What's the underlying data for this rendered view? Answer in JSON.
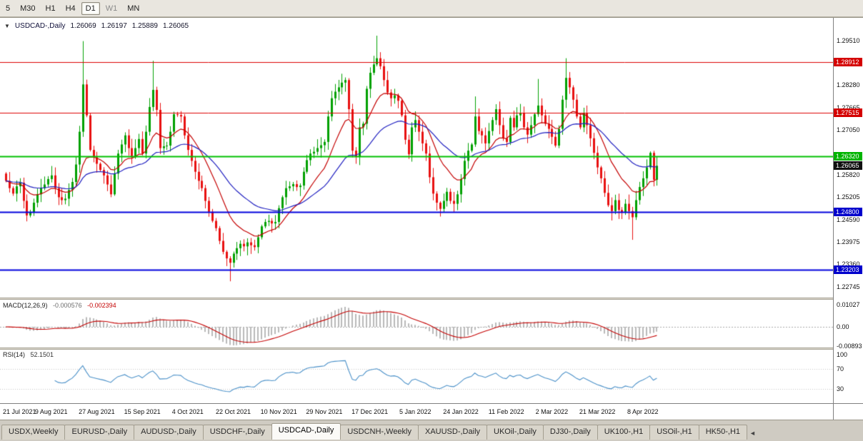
{
  "toolbar": {
    "timeframes": [
      {
        "label": "5",
        "active": false,
        "dim": false
      },
      {
        "label": "M30",
        "active": false,
        "dim": false
      },
      {
        "label": "H1",
        "active": false,
        "dim": false
      },
      {
        "label": "H4",
        "active": false,
        "dim": false
      },
      {
        "label": "D1",
        "active": true,
        "dim": false
      },
      {
        "label": "W1",
        "active": false,
        "dim": true
      },
      {
        "label": "MN",
        "active": false,
        "dim": false
      }
    ]
  },
  "symbol_info": {
    "arrow": "▼",
    "symbol": "USDCAD-,Daily",
    "open": "1.26069",
    "high": "1.26197",
    "low": "1.25889",
    "close": "1.26065"
  },
  "price_scale": {
    "ticks": [
      "1.29510",
      "1.28280",
      "1.27665",
      "1.27050",
      "1.25820",
      "1.25205",
      "1.24590",
      "1.23975",
      "1.23360",
      "1.22745"
    ],
    "badges": [
      {
        "label": "1.28912",
        "color": "#d40000"
      },
      {
        "label": "1.27515",
        "color": "#d40000"
      },
      {
        "label": "1.26320",
        "color": "#00b400"
      },
      {
        "label": "1.26065",
        "color": "#101010"
      },
      {
        "label": "1.24800",
        "color": "#0000cc"
      },
      {
        "label": "1.23203",
        "color": "#0000cc"
      }
    ]
  },
  "macd_panel": {
    "name": "MACD(12,26,9)",
    "value_main": "-0.000576",
    "value_signal": "-0.002394",
    "scale": [
      "0.01027",
      "0.00",
      "-0.00893"
    ]
  },
  "rsi_panel": {
    "name": "RSI(14)",
    "value": "52.1501",
    "scale": [
      "100",
      "70",
      "30"
    ],
    "levels": [
      70,
      30
    ]
  },
  "time_axis": {
    "labels": [
      "21 Jul 2021",
      "9 Aug 2021",
      "27 Aug 2021",
      "15 Sep 2021",
      "4 Oct 2021",
      "22 Oct 2021",
      "10 Nov 2021",
      "29 Nov 2021",
      "17 Dec 2021",
      "5 Jan 2022",
      "24 Jan 2022",
      "11 Feb 2022",
      "2 Mar 2022",
      "21 Mar 2022",
      "8 Apr 2022"
    ],
    "label_step": 13
  },
  "tabbar": {
    "scroll_left": "◄",
    "tabs": [
      {
        "label": "USDX,Weekly",
        "active": false
      },
      {
        "label": "EURUSD-,Daily",
        "active": false
      },
      {
        "label": "AUDUSD-,Daily",
        "active": false
      },
      {
        "label": "USDCHF-,Daily",
        "active": false
      },
      {
        "label": "USDCAD-,Daily",
        "active": true
      },
      {
        "label": "USDCNH-,Weekly",
        "active": false
      },
      {
        "label": "XAUUSD-,Daily",
        "active": false
      },
      {
        "label": "UKOil-,Daily",
        "active": false
      },
      {
        "label": "DJ30-,Daily",
        "active": false
      },
      {
        "label": "UK100-,H1",
        "active": false
      },
      {
        "label": "USOil-,H1",
        "active": false
      },
      {
        "label": "HK50-,H1",
        "active": false
      }
    ]
  },
  "chart_data": {
    "type": "candlestick",
    "symbol": "USDCAD",
    "timeframe": "Daily",
    "title": "USDCAD-,Daily",
    "y_range": [
      1.2244,
      1.3013
    ],
    "current_price": 1.26065,
    "first_open": 1.2585,
    "closes": [
      1.2565,
      1.2545,
      1.253,
      1.255,
      1.256,
      1.251,
      1.247,
      1.2478,
      1.2505,
      1.2528,
      1.2545,
      1.2555,
      1.257,
      1.258,
      1.2545,
      1.252,
      1.2512,
      1.2516,
      1.254,
      1.2562,
      1.261,
      1.27,
      1.283,
      1.2745,
      1.265,
      1.263,
      1.2612,
      1.2595,
      1.258,
      1.2555,
      1.2528,
      1.2585,
      1.264,
      1.2665,
      1.269,
      1.2655,
      1.263,
      1.2655,
      1.268,
      1.264,
      1.27,
      1.2768,
      1.2815,
      1.276,
      1.2655,
      1.266,
      1.2662,
      1.27,
      1.2748,
      1.2746,
      1.2742,
      1.269,
      1.265,
      1.262,
      1.259,
      1.2565,
      1.2545,
      1.251,
      1.248,
      1.2455,
      1.2435,
      1.24,
      1.237,
      1.2352,
      1.234,
      1.2365,
      1.238,
      1.2392,
      1.2385,
      1.2396,
      1.2388,
      1.2383,
      1.241,
      1.244,
      1.2452,
      1.2455,
      1.2448,
      1.2452,
      1.249,
      1.252,
      1.2545,
      1.255,
      1.2556,
      1.2548,
      1.2552,
      1.259,
      1.2622,
      1.264,
      1.2645,
      1.2655,
      1.2663,
      1.2672,
      1.2742,
      1.2792,
      1.281,
      1.2822,
      1.2835,
      1.2842,
      1.2762,
      1.2648,
      1.2632,
      1.2712,
      1.2722,
      1.2818,
      1.2862,
      1.2885,
      1.2902,
      1.288,
      1.2842,
      1.2808,
      1.2792,
      1.28,
      1.2785,
      1.2745,
      1.2678,
      1.2638,
      1.2712,
      1.2732,
      1.27,
      1.2668,
      1.264,
      1.2575,
      1.253,
      1.2505,
      1.2488,
      1.251,
      1.2535,
      1.251,
      1.2502,
      1.2528,
      1.257,
      1.262,
      1.2648,
      1.2665,
      1.2742,
      1.2702,
      1.269,
      1.2668,
      1.2702,
      1.2732,
      1.2762,
      1.2718,
      1.2682,
      1.2672,
      1.2738,
      1.2712,
      1.2745,
      1.2752,
      1.2712,
      1.2692,
      1.2718,
      1.2748,
      1.2772,
      1.2745,
      1.2722,
      1.2708,
      1.2686,
      1.2662,
      1.2708,
      1.2788,
      1.2848,
      1.2822,
      1.2788,
      1.2742,
      1.2712,
      1.2752,
      1.2718,
      1.2682,
      1.2642,
      1.2602,
      1.2572,
      1.2532,
      1.2498,
      1.2482,
      1.2512,
      1.2485,
      1.2478,
      1.2502,
      1.2482,
      1.2465,
      1.2512,
      1.2548,
      1.2572,
      1.2602,
      1.2642,
      1.2568,
      1.26065
    ],
    "spikes": {
      "22": {
        "high": 1.2949
      },
      "42": {
        "high": 1.2895
      },
      "64": {
        "low": 1.2289
      },
      "106": {
        "high": 1.2964
      },
      "134": {
        "high": 1.2797
      },
      "152": {
        "high": 1.2845
      },
      "160": {
        "high": 1.2902
      },
      "179": {
        "low": 1.2403
      }
    },
    "levels": [
      {
        "price": 1.28912,
        "color": "#dd0000",
        "width": 1
      },
      {
        "price": 1.27515,
        "color": "#dd0000",
        "width": 1
      },
      {
        "price": 1.2632,
        "color": "#00c000",
        "width": 2
      },
      {
        "price": 1.248,
        "color": "#0000dd",
        "width": 2
      },
      {
        "price": 1.23203,
        "color": "#0000dd",
        "width": 2
      }
    ],
    "colors": {
      "up": "#00a000",
      "down": "#e81010",
      "ma_fast": "#c40000",
      "ma_slow": "#2020c0",
      "macd_hist": "#b9b9b9",
      "macd_signal": "#c40000",
      "rsi": "#4a90c8"
    },
    "ma_fast_period": 13,
    "ma_slow_period": 34,
    "macd_params": [
      12,
      26,
      9
    ],
    "rsi_period": 14
  }
}
